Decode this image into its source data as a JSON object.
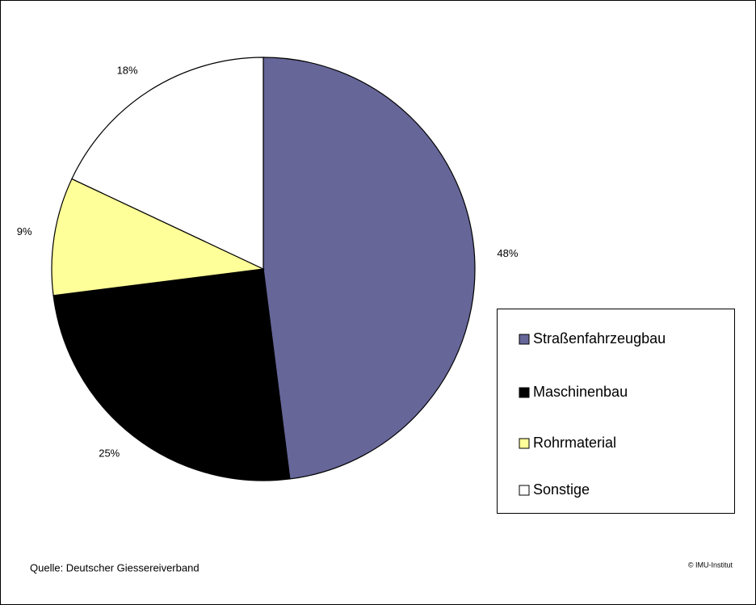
{
  "chart_data": {
    "type": "pie",
    "categories": [
      "Straßenfahrzeugbau",
      "Maschinenbau",
      "Rohrmaterial",
      "Sonstige"
    ],
    "values": [
      48,
      25,
      9,
      18
    ],
    "value_labels": [
      "48%",
      "25%",
      "9%",
      "18%"
    ],
    "colors": [
      "#666699",
      "#000000",
      "#ffff99",
      "#ffffff"
    ],
    "legend": "right"
  },
  "source": "Quelle: Deutscher Giessereiverband",
  "copyright": "© IMU-Institut"
}
